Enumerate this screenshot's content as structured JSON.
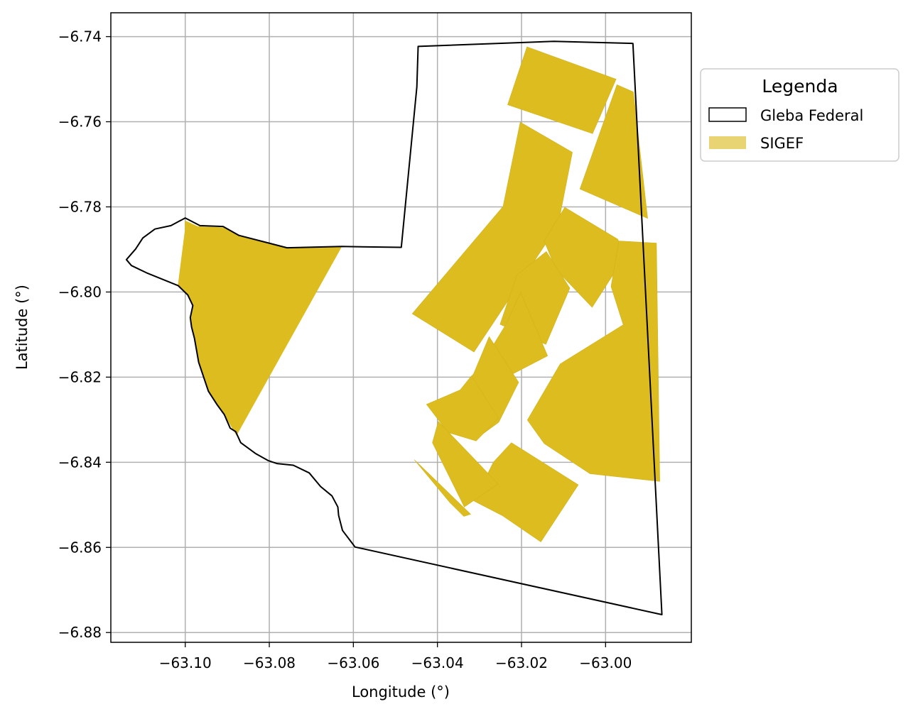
{
  "chart_data": {
    "type": "map",
    "xlabel": "Longitude (°)",
    "ylabel": "Latitude (°)",
    "xlim": [
      -63.1177,
      -62.9796
    ],
    "ylim": [
      -6.8823,
      -6.7344
    ],
    "xticks": [
      -63.1,
      -63.08,
      -63.06,
      -63.04,
      -63.02,
      -63.0
    ],
    "xtick_labels": [
      "−63.10",
      "−63.08",
      "−63.06",
      "−63.04",
      "−63.02",
      "−63.00"
    ],
    "yticks": [
      -6.74,
      -6.76,
      -6.78,
      -6.8,
      -6.82,
      -6.84,
      -6.86,
      -6.88
    ],
    "ytick_labels": [
      "−6.74",
      "−6.76",
      "−6.78",
      "−6.80",
      "−6.82",
      "−6.84",
      "−6.86",
      "−6.88"
    ],
    "grid": true,
    "legend": {
      "title": "Legenda",
      "position": "outside-right-top",
      "entries": [
        {
          "label": "Gleba Federal",
          "style": "outline",
          "color": "#000000"
        },
        {
          "label": "SIGEF",
          "style": "fill",
          "color": "#e9d474"
        }
      ]
    },
    "colors": {
      "sigef_fill": "#dcbc1f",
      "gleba_edge": "#000000",
      "grid": "#b0b0b0"
    },
    "gleba_federal": [
      [
        -63.0446,
        -6.7423
      ],
      [
        -63.0123,
        -6.7411
      ],
      [
        -62.9935,
        -6.7416
      ],
      [
        -62.9866,
        -6.8758
      ],
      [
        -63.0596,
        -6.8599
      ],
      [
        -63.0626,
        -6.856
      ],
      [
        -63.0635,
        -6.8525
      ],
      [
        -63.0637,
        -6.8505
      ],
      [
        -63.0651,
        -6.8479
      ],
      [
        -63.0678,
        -6.8457
      ],
      [
        -63.0705,
        -6.8425
      ],
      [
        -63.0743,
        -6.8407
      ],
      [
        -63.0782,
        -6.8403
      ],
      [
        -63.0803,
        -6.8396
      ],
      [
        -63.0832,
        -6.838
      ],
      [
        -63.0868,
        -6.8354
      ],
      [
        -63.088,
        -6.8328
      ],
      [
        -63.0893,
        -6.832
      ],
      [
        -63.0907,
        -6.8288
      ],
      [
        -63.0924,
        -6.8265
      ],
      [
        -63.0945,
        -6.8233
      ],
      [
        -63.0968,
        -6.8165
      ],
      [
        -63.0978,
        -6.8109
      ],
      [
        -63.0985,
        -6.8082
      ],
      [
        -63.0988,
        -6.806
      ],
      [
        -63.0982,
        -6.8032
      ],
      [
        -63.0994,
        -6.8007
      ],
      [
        -63.1017,
        -6.7985
      ],
      [
        -63.1092,
        -6.7955
      ],
      [
        -63.1128,
        -6.7938
      ],
      [
        -63.114,
        -6.7924
      ],
      [
        -63.1118,
        -6.7899
      ],
      [
        -63.1101,
        -6.7873
      ],
      [
        -63.1072,
        -6.7852
      ],
      [
        -63.1034,
        -6.7844
      ],
      [
        -63.1,
        -6.7826
      ],
      [
        -63.0965,
        -6.7844
      ],
      [
        -63.091,
        -6.7846
      ],
      [
        -63.0872,
        -6.7867
      ],
      [
        -63.0758,
        -6.7896
      ],
      [
        -63.0628,
        -6.7893
      ],
      [
        -63.0486,
        -6.7895
      ],
      [
        -63.0449,
        -6.7518
      ]
    ],
    "sigef_parcels": [
      [
        [
          -63.0187,
          -6.7424
        ],
        [
          -62.9975,
          -6.75
        ],
        [
          -63.0031,
          -6.7628
        ],
        [
          -63.0233,
          -6.756
        ]
      ],
      [
        [
          -62.9973,
          -6.7513
        ],
        [
          -62.9934,
          -6.753
        ],
        [
          -62.99,
          -6.7827
        ],
        [
          -63.0061,
          -6.7758
        ]
      ],
      [
        [
          -63.0203,
          -6.7601
        ],
        [
          -63.0079,
          -6.7672
        ],
        [
          -63.0113,
          -6.7843
        ],
        [
          -63.0313,
          -6.8141
        ],
        [
          -63.046,
          -6.8051
        ],
        [
          -63.0244,
          -6.7799
        ]
      ],
      [
        [
          -63.0097,
          -6.7801
        ],
        [
          -62.9971,
          -6.7876
        ],
        [
          -62.9953,
          -6.7915
        ],
        [
          -63.0032,
          -6.8036
        ],
        [
          -63.0118,
          -6.7947
        ],
        [
          -63.0146,
          -6.788
        ]
      ],
      [
        [
          -62.9968,
          -6.788
        ],
        [
          -62.9879,
          -6.7885
        ],
        [
          -62.9871,
          -6.8445
        ],
        [
          -63.0037,
          -6.8427
        ],
        [
          -63.0146,
          -6.8356
        ],
        [
          -63.0186,
          -6.8301
        ],
        [
          -63.0108,
          -6.8169
        ],
        [
          -62.9958,
          -6.8077
        ],
        [
          -62.9987,
          -6.7987
        ]
      ],
      [
        [
          -63.0141,
          -6.7905
        ],
        [
          -63.0085,
          -6.7991
        ],
        [
          -63.0142,
          -6.8123
        ],
        [
          -63.0251,
          -6.8076
        ],
        [
          -63.0211,
          -6.796
        ]
      ],
      [
        [
          -63.0202,
          -6.8001
        ],
        [
          -63.0138,
          -6.815
        ],
        [
          -63.0271,
          -6.8218
        ],
        [
          -63.0336,
          -6.8236
        ],
        [
          -63.0237,
          -6.8076
        ]
      ],
      [
        [
          -63.0277,
          -6.8105
        ],
        [
          -63.0207,
          -6.8212
        ],
        [
          -63.0254,
          -6.8306
        ],
        [
          -63.03,
          -6.8339
        ],
        [
          -63.0364,
          -6.8255
        ],
        [
          -63.0314,
          -6.8192
        ]
      ],
      [
        [
          -63.0319,
          -6.8197
        ],
        [
          -63.0255,
          -6.8296
        ],
        [
          -63.0308,
          -6.835
        ],
        [
          -63.0375,
          -6.833
        ],
        [
          -63.0426,
          -6.8264
        ],
        [
          -63.0346,
          -6.823
        ]
      ],
      [
        [
          -63.0224,
          -6.8354
        ],
        [
          -63.0065,
          -6.8453
        ],
        [
          -63.0154,
          -6.8587
        ],
        [
          -63.0246,
          -6.8525
        ],
        [
          -63.0313,
          -6.8491
        ],
        [
          -63.0267,
          -6.84
        ]
      ],
      [
        [
          -63.0398,
          -6.8304
        ],
        [
          -63.0298,
          -6.8407
        ],
        [
          -63.0256,
          -6.8451
        ],
        [
          -63.0336,
          -6.8505
        ],
        [
          -63.0412,
          -6.8354
        ]
      ],
      [
        [
          -63.0455,
          -6.8394
        ],
        [
          -63.0411,
          -6.8436
        ],
        [
          -63.0321,
          -6.8522
        ],
        [
          -63.0337,
          -6.8527
        ],
        [
          -63.037,
          -6.8495
        ]
      ]
    ],
    "sigef_gleba_overlap": [
      [
        [
          -63.1,
          -6.7833
        ],
        [
          -63.0971,
          -6.7846
        ],
        [
          -63.091,
          -6.7849
        ],
        [
          -63.0872,
          -6.7867
        ],
        [
          -63.0758,
          -6.7896
        ],
        [
          -63.0628,
          -6.7893
        ],
        [
          -63.0878,
          -6.8336
        ],
        [
          -63.0907,
          -6.8288
        ],
        [
          -63.0924,
          -6.8265
        ],
        [
          -63.0945,
          -6.8233
        ],
        [
          -63.0968,
          -6.8165
        ],
        [
          -63.0978,
          -6.8109
        ],
        [
          -63.0985,
          -6.8082
        ],
        [
          -63.0988,
          -6.806
        ],
        [
          -63.0982,
          -6.8032
        ],
        [
          -63.0994,
          -6.8007
        ],
        [
          -63.1017,
          -6.7985
        ],
        [
          -63.1,
          -6.7853
        ]
      ]
    ]
  }
}
